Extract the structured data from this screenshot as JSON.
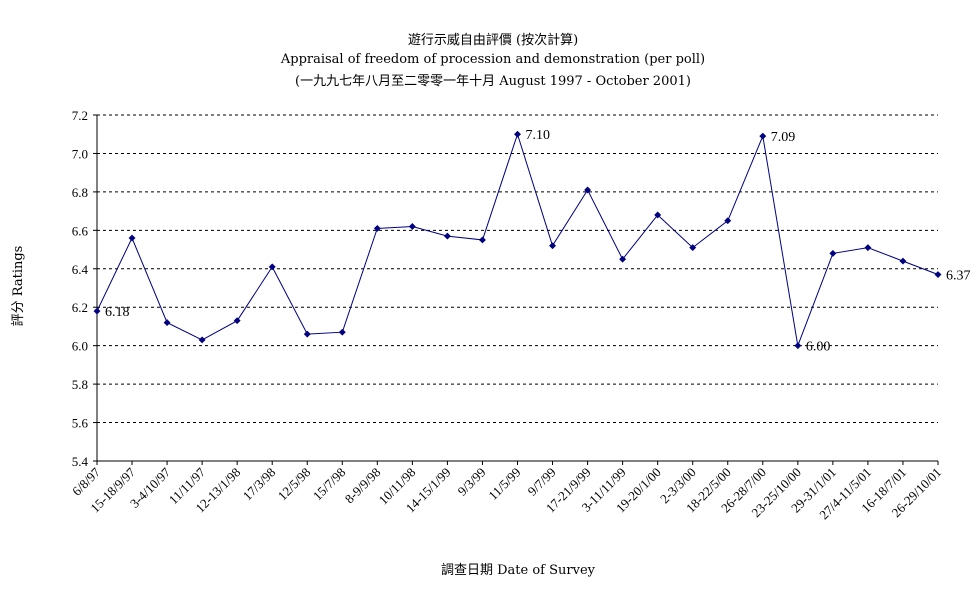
{
  "chart_data": {
    "type": "line",
    "title": "遊行示威自由評價 (按次計算)",
    "subtitle": "Appraisal of freedom of procession and demonstration (per poll)",
    "subtitle2": "(一九九七年八月至二零零一年十月 August 1997 - October 2001)",
    "xlabel": "調查日期 Date of Survey",
    "ylabel": "評分 Ratings",
    "ylim": [
      5.4,
      7.2
    ],
    "yticks": [
      "5.4",
      "5.6",
      "5.8",
      "6.0",
      "6.2",
      "6.4",
      "6.6",
      "6.8",
      "7.0",
      "7.2"
    ],
    "grid": "horizontal dashed",
    "line_color": "#000080",
    "categories": [
      "6/8/97",
      "15-18/9/97",
      "3-4/10/97",
      "11/11/97",
      "12-13/1/98",
      "17/3/98",
      "12/5/98",
      "15/7/98",
      "8-9/9/98",
      "10/11/98",
      "14-15/1/99",
      "9/3/99",
      "11/5/99",
      "9/7/99",
      "17-21/9/99",
      "3-11/11/99",
      "19-20/1/00",
      "2-3/3/00",
      "18-22/5/00",
      "26-28/7/00",
      "23-25/10/00",
      "29-31/1/01",
      "27/4-11/5/01",
      "16-18/7/01",
      "26-29/10/01"
    ],
    "values": [
      6.18,
      6.56,
      6.12,
      6.03,
      6.13,
      6.41,
      6.06,
      6.07,
      6.61,
      6.62,
      6.57,
      6.55,
      7.1,
      6.52,
      6.81,
      6.45,
      6.68,
      6.51,
      6.65,
      7.09,
      6.0,
      6.48,
      6.51,
      6.44,
      6.37
    ],
    "data_labels": [
      {
        "index": 0,
        "text": "6.18"
      },
      {
        "index": 12,
        "text": "7.10"
      },
      {
        "index": 19,
        "text": "7.09"
      },
      {
        "index": 20,
        "text": "6.00"
      },
      {
        "index": 24,
        "text": "6.37"
      }
    ]
  }
}
